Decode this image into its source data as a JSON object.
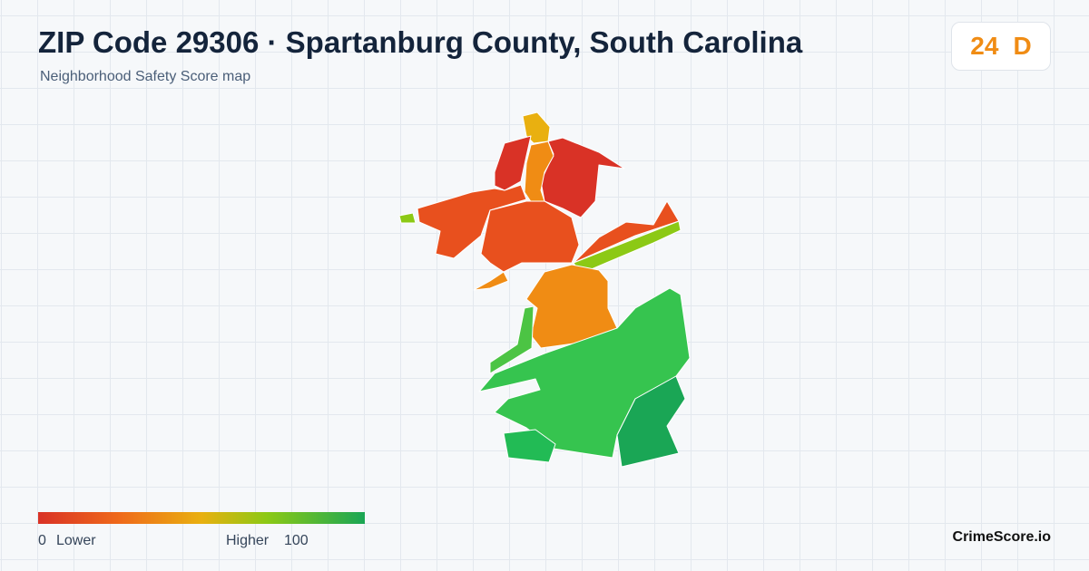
{
  "header": {
    "title": "ZIP Code 29306 · Spartanburg County, South Carolina",
    "subtitle": "Neighborhood Safety Score map"
  },
  "score": {
    "value": "24",
    "grade": "D"
  },
  "legend": {
    "min": "0",
    "min_label": "Lower",
    "max_label": "Higher",
    "max": "100"
  },
  "brand": "CrimeScore.io"
}
